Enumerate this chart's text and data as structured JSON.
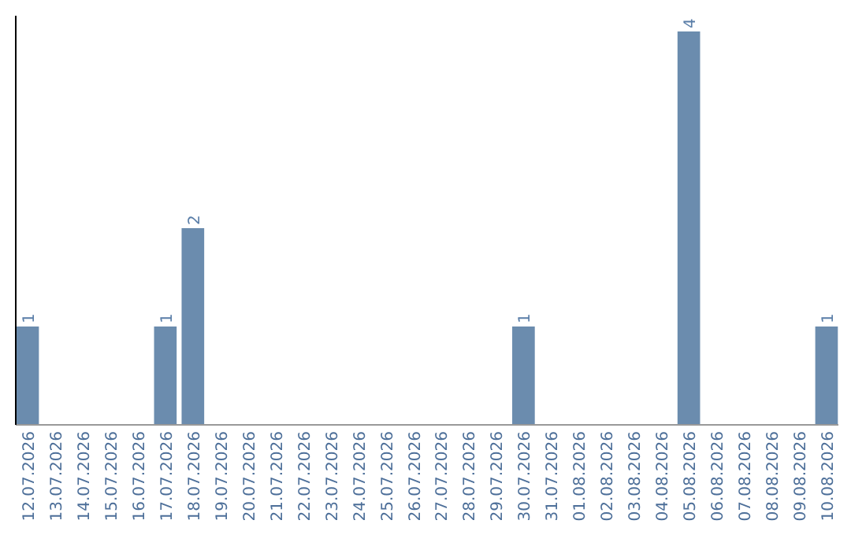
{
  "chart_data": {
    "type": "bar",
    "categories": [
      "12.07.2026",
      "13.07.2026",
      "14.07.2026",
      "15.07.2026",
      "16.07.2026",
      "17.07.2026",
      "18.07.2026",
      "19.07.2026",
      "20.07.2026",
      "21.07.2026",
      "22.07.2026",
      "23.07.2026",
      "24.07.2026",
      "25.07.2026",
      "26.07.2026",
      "27.07.2026",
      "28.07.2026",
      "29.07.2026",
      "30.07.2026",
      "31.07.2026",
      "01.08.2026",
      "02.08.2026",
      "03.08.2026",
      "04.08.2026",
      "05.08.2026",
      "06.08.2026",
      "07.08.2026",
      "08.08.2026",
      "09.08.2026",
      "10.08.2026"
    ],
    "values": [
      1,
      0,
      0,
      0,
      0,
      1,
      2,
      0,
      0,
      0,
      0,
      0,
      0,
      0,
      0,
      0,
      0,
      0,
      1,
      0,
      0,
      0,
      0,
      0,
      4,
      0,
      0,
      0,
      0,
      1
    ],
    "value_labels": [
      "1",
      null,
      null,
      null,
      null,
      "1",
      "2",
      null,
      null,
      null,
      null,
      null,
      null,
      null,
      null,
      null,
      null,
      null,
      "1",
      null,
      null,
      null,
      null,
      null,
      "4",
      null,
      null,
      null,
      null,
      "1"
    ],
    "color": "#6b8cae",
    "tick_labels": "x",
    "grid": false
  }
}
